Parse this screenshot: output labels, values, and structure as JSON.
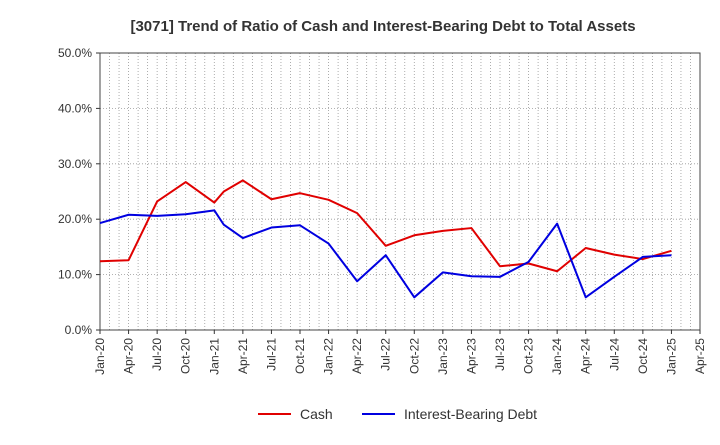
{
  "chart_data": {
    "type": "line",
    "title": "[3071]  Trend of Ratio of Cash and Interest-Bearing Debt to Total Assets",
    "xlabel": "",
    "ylabel": "",
    "ylim": [
      0,
      50
    ],
    "y_ticks": [
      "0.0%",
      "10.0%",
      "20.0%",
      "30.0%",
      "40.0%",
      "50.0%"
    ],
    "x_tick_labels": [
      "Jan-20",
      "Apr-20",
      "Jul-20",
      "Oct-20",
      "Jan-21",
      "Apr-21",
      "Jul-21",
      "Oct-21",
      "Jan-22",
      "Apr-22",
      "Jul-22",
      "Oct-22",
      "Jan-23",
      "Apr-23",
      "Jul-23",
      "Oct-23",
      "Jan-24",
      "Apr-24",
      "Jul-24",
      "Oct-24",
      "Jan-25",
      "Apr-25"
    ],
    "x": [
      "Jan-20",
      "Apr-20",
      "Jul-20",
      "Oct-20",
      "Jan-21",
      "Feb-21",
      "Apr-21",
      "Jul-21",
      "Oct-21",
      "Jan-22",
      "Apr-22",
      "Jul-22",
      "Oct-22",
      "Jan-23",
      "Apr-23",
      "Jul-23",
      "Oct-23",
      "Jan-24",
      "Apr-24",
      "Jul-24",
      "Oct-24",
      "Jan-25"
    ],
    "series": [
      {
        "name": "Cash",
        "color": "#e00000",
        "values": [
          12.4,
          12.6,
          23.2,
          26.7,
          23.0,
          25.0,
          27.0,
          23.6,
          24.7,
          23.5,
          21.1,
          15.2,
          17.1,
          17.9,
          18.4,
          11.5,
          12.0,
          10.6,
          14.8,
          13.6,
          12.8,
          14.3
        ]
      },
      {
        "name": "Interest-Bearing Debt",
        "color": "#0000e0",
        "values": [
          19.3,
          20.8,
          20.6,
          20.9,
          21.6,
          19.0,
          16.6,
          18.5,
          18.9,
          15.6,
          8.8,
          13.5,
          5.9,
          10.4,
          9.7,
          9.6,
          12.3,
          19.2,
          5.9,
          9.6,
          13.2,
          13.5
        ]
      }
    ],
    "grid": true,
    "legend_position": "bottom"
  }
}
